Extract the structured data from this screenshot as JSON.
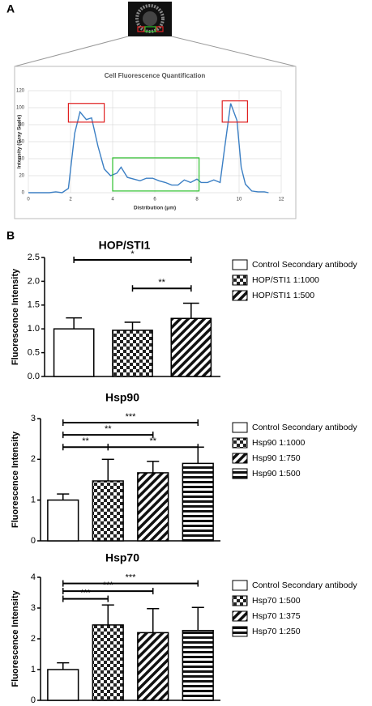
{
  "panels": [
    "A",
    "B"
  ],
  "chart_data": [
    {
      "type": "line",
      "title": "Cell Fluorescence Quantification",
      "x_label": "Distribution (μm)",
      "y_label": "Intensity (Gray Scale)",
      "xlim": [
        0,
        12
      ],
      "ylim": [
        0,
        120
      ],
      "xticks": [
        0,
        2,
        4,
        6,
        8,
        10,
        12
      ],
      "yticks": [
        0,
        20,
        40,
        60,
        80,
        100,
        120
      ],
      "grid": true,
      "color": "#3b7fc4",
      "x": [
        0,
        0.5,
        1,
        1.3,
        1.6,
        1.9,
        2.2,
        2.45,
        2.75,
        3.0,
        3.3,
        3.6,
        3.9,
        4.2,
        4.4,
        4.7,
        5.0,
        5.3,
        5.6,
        5.9,
        6.2,
        6.5,
        6.8,
        7.1,
        7.4,
        7.7,
        8.0,
        8.2,
        8.5,
        8.8,
        9.1,
        9.3,
        9.6,
        9.9,
        10.1,
        10.3,
        10.6,
        10.9,
        11.2,
        11.4
      ],
      "values": [
        0,
        0,
        0,
        1,
        0,
        5,
        70,
        95,
        86,
        88,
        55,
        28,
        20,
        23,
        30,
        18,
        16,
        14,
        17,
        17,
        14,
        12,
        9,
        9,
        15,
        12,
        16,
        12,
        12,
        15,
        12,
        50,
        105,
        85,
        30,
        10,
        2,
        1,
        1,
        0
      ],
      "highlights": [
        {
          "color": "#e02020",
          "x": [
            1.9,
            3.6
          ],
          "y": [
            83,
            105
          ]
        },
        {
          "color": "#2ec02e",
          "x": [
            4.0,
            8.1
          ],
          "y": [
            2,
            41
          ]
        },
        {
          "color": "#e02020",
          "x": [
            9.2,
            10.4
          ],
          "y": [
            83,
            108
          ]
        }
      ]
    },
    {
      "type": "bar",
      "title": "HOP/STI1",
      "y_label": "Fluorescence Intensity",
      "categories": [
        null
      ],
      "ylim": [
        0,
        2.5
      ],
      "yticks": [
        {
          "value": 0,
          "label": "0.0"
        },
        0.5,
        {
          "value": 1,
          "label": "1.0"
        },
        1.5,
        {
          "value": 2,
          "label": "2.0"
        },
        2.5
      ],
      "series": [
        {
          "name": "Control Secondary antibody",
          "pattern": "none",
          "values": [
            1.0
          ],
          "errors": [
            0.23
          ]
        },
        {
          "name": "HOP/STI1 1:1000",
          "pattern": "checker",
          "values": [
            0.97
          ],
          "errors": [
            0.17
          ]
        },
        {
          "name": "HOP/STI1 1:500",
          "pattern": "diagonal",
          "values": [
            1.22
          ],
          "errors": [
            0.32
          ]
        }
      ],
      "brackets": [
        {
          "from": 0,
          "to": 2,
          "y": 2.45,
          "label": "*"
        },
        {
          "from": 1,
          "to": 2,
          "y": 1.85,
          "label": "**"
        }
      ]
    },
    {
      "type": "bar",
      "title": "Hsp90",
      "y_label": "Fluorescence Intensity",
      "categories": [
        null
      ],
      "ylim": [
        0,
        3
      ],
      "yticks": [
        0,
        1,
        2,
        3
      ],
      "series": [
        {
          "name": "Control Secondary antibody",
          "pattern": "none",
          "values": [
            1.0
          ],
          "errors": [
            0.15
          ]
        },
        {
          "name": "Hsp90 1:1000",
          "pattern": "checker",
          "values": [
            1.47
          ],
          "errors": [
            0.53
          ]
        },
        {
          "name": "Hsp90 1:750",
          "pattern": "diagonal",
          "values": [
            1.67
          ],
          "errors": [
            0.28
          ]
        },
        {
          "name": "Hsp90 1:500",
          "pattern": "horizontal",
          "values": [
            1.9
          ],
          "errors": [
            0.4
          ]
        }
      ],
      "brackets": [
        {
          "from": 0,
          "to": 3,
          "y": 2.9,
          "label": "***"
        },
        {
          "from": 0,
          "to": 2,
          "y": 2.6,
          "label": "**"
        },
        {
          "from": 0,
          "to": 1,
          "y": 2.3,
          "label": "**"
        },
        {
          "from": 1,
          "to": 3,
          "y": 2.3,
          "label": "**"
        }
      ]
    },
    {
      "type": "bar",
      "title": "Hsp70",
      "y_label": "Fluorescence Intensity",
      "categories": [
        null
      ],
      "ylim": [
        0,
        4
      ],
      "yticks": [
        0,
        1,
        2,
        3,
        4
      ],
      "series": [
        {
          "name": "Control Secondary antibody",
          "pattern": "none",
          "values": [
            1.0
          ],
          "errors": [
            0.22
          ]
        },
        {
          "name": "Hsp70 1:500",
          "pattern": "checker",
          "values": [
            2.45
          ],
          "errors": [
            0.65
          ]
        },
        {
          "name": "Hsp70 1:375",
          "pattern": "diagonal",
          "values": [
            2.2
          ],
          "errors": [
            0.78
          ]
        },
        {
          "name": "Hsp70 1:250",
          "pattern": "horizontal",
          "values": [
            2.27
          ],
          "errors": [
            0.75
          ]
        }
      ],
      "brackets": [
        {
          "from": 0,
          "to": 3,
          "y": 3.8,
          "label": "***"
        },
        {
          "from": 0,
          "to": 2,
          "y": 3.55,
          "label": "***"
        },
        {
          "from": 0,
          "to": 1,
          "y": 3.3,
          "label": "***"
        }
      ]
    }
  ]
}
